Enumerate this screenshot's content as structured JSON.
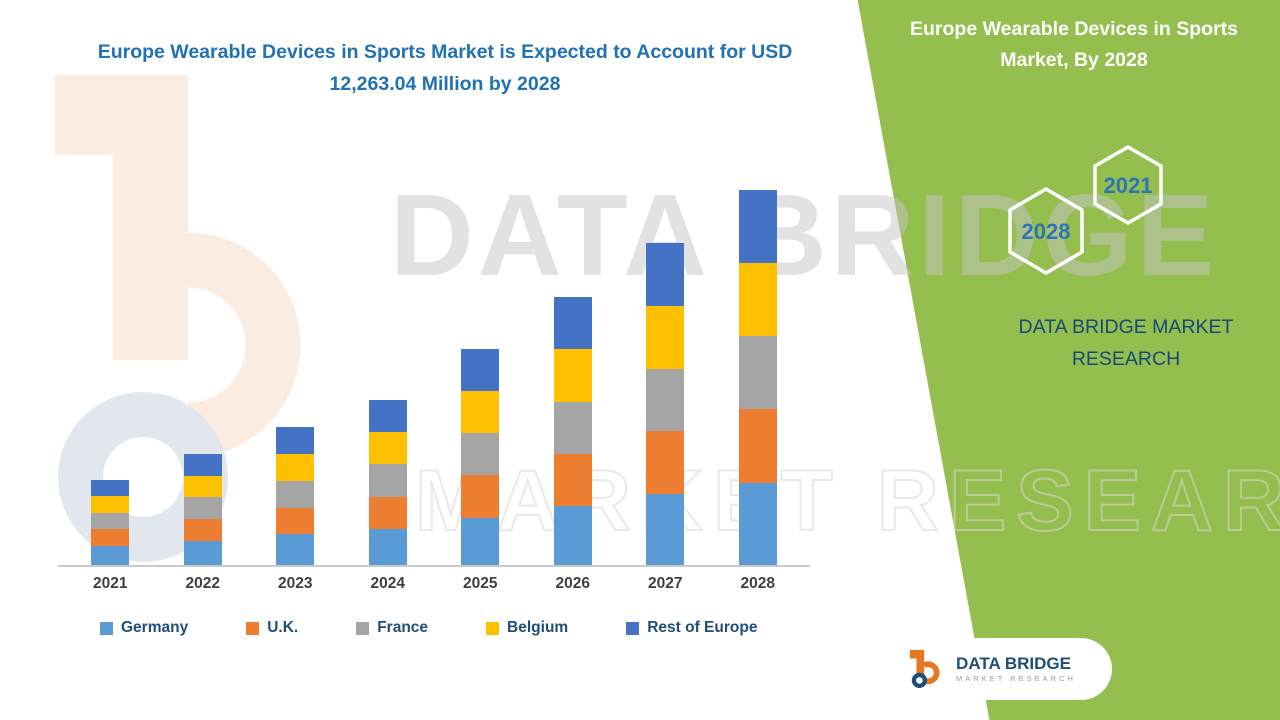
{
  "page": {
    "headline": "Europe Wearable Devices in Sports Market is Expected to Account for USD 12,263.04 Million by 2028"
  },
  "right_panel": {
    "title": "Europe Wearable Devices in Sports Market, By 2028",
    "hexagons": [
      {
        "label": "2028"
      },
      {
        "label": "2021"
      }
    ],
    "brand_text": "DATA BRIDGE MARKET RESEARCH",
    "bg_color": "#94BE4D"
  },
  "watermark": {
    "line1": "DATA BRIDGE",
    "line2": "MARKET RESEARCH"
  },
  "logo_card": {
    "name": "DATA BRIDGE",
    "tagline": "MARKET RESEARCH"
  },
  "chart_data": {
    "type": "bar",
    "stacked": true,
    "title": "Europe Wearable Devices in Sports Market is Expected to Account for USD 12,263.04 Million by 2028",
    "xlabel": "",
    "ylabel": "",
    "ylim": [
      0,
      12500
    ],
    "grid": false,
    "legend_position": "bottom",
    "categories": [
      "2021",
      "2022",
      "2023",
      "2024",
      "2025",
      "2026",
      "2027",
      "2028"
    ],
    "series": [
      {
        "name": "Germany",
        "color": "#5B9BD5",
        "values": [
          620,
          800,
          1000,
          1190,
          1550,
          1930,
          2320,
          2700
        ]
      },
      {
        "name": "U.K.",
        "color": "#ED7D31",
        "values": [
          550,
          710,
          880,
          1050,
          1380,
          1710,
          2060,
          2400
        ]
      },
      {
        "name": "France",
        "color": "#A5A5A5",
        "values": [
          540,
          700,
          880,
          1050,
          1380,
          1710,
          2050,
          2390
        ]
      },
      {
        "name": "Belgium",
        "color": "#FFC000",
        "values": [
          540,
          710,
          880,
          1050,
          1375,
          1705,
          2050,
          2390
        ]
      },
      {
        "name": "Rest of Europe",
        "color": "#4472C4",
        "values": [
          540,
          710,
          880,
          1050,
          1375,
          1705,
          2050,
          2383.04
        ]
      }
    ]
  }
}
